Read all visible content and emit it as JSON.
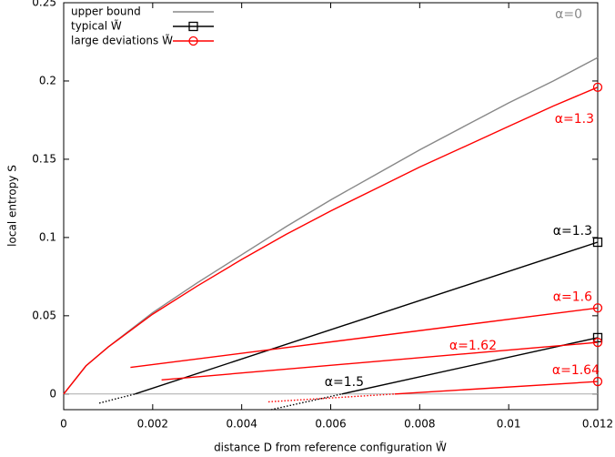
{
  "chart_data": {
    "type": "line",
    "xlabel": "distance D from reference configuration W̃",
    "ylabel": "local entropy S",
    "xlim": [
      0,
      0.012
    ],
    "xticks": [
      0,
      0.002,
      0.004,
      0.006,
      0.008,
      0.01,
      0.012
    ],
    "ylim": [
      -0.01,
      0.25
    ],
    "yticks": [
      0,
      0.05,
      0.1,
      0.15,
      0.2,
      0.25
    ],
    "legend_position": "upper left",
    "series": [
      {
        "name": "upper bound",
        "color": "#888888",
        "marker": "none",
        "curves": [
          {
            "label": "α=0",
            "linestyle": "solid",
            "x": [
              0,
              0.0005,
              0.001,
              0.002,
              0.003,
              0.004,
              0.005,
              0.006,
              0.007,
              0.008,
              0.009,
              0.01,
              0.011,
              0.012
            ],
            "values": [
              0,
              0.018,
              0.03,
              0.052,
              0.071,
              0.089,
              0.107,
              0.124,
              0.14,
              0.156,
              0.171,
              0.186,
              0.2,
              0.215
            ]
          }
        ]
      },
      {
        "name": "typical W̃",
        "color": "#000000",
        "marker": "square",
        "curves": [
          {
            "linestyle": "dotted",
            "x": [
              0.0008,
              0.0016
            ],
            "values": [
              -0.0058,
              0
            ]
          },
          {
            "label": "α=1.3",
            "linestyle": "solid",
            "x": [
              0.0016,
              0.012
            ],
            "values": [
              0,
              0.097
            ]
          },
          {
            "linestyle": "dotted",
            "x": [
              0.00466,
              0.00625
            ],
            "values": [
              -0.01,
              0
            ]
          },
          {
            "label": "α=1.5",
            "linestyle": "solid",
            "x": [
              0.00625,
              0.012
            ],
            "values": [
              0,
              0.036
            ]
          }
        ]
      },
      {
        "name": "large deviations W̃",
        "color": "#ff0000",
        "marker": "circle",
        "curves": [
          {
            "label": "α=1.3",
            "linestyle": "solid",
            "x": [
              0,
              0.0005,
              0.001,
              0.002,
              0.003,
              0.004,
              0.005,
              0.006,
              0.007,
              0.008,
              0.009,
              0.01,
              0.011,
              0.012
            ],
            "values": [
              0,
              0.018,
              0.03,
              0.051,
              0.069,
              0.086,
              0.102,
              0.117,
              0.131,
              0.145,
              0.158,
              0.171,
              0.184,
              0.196
            ]
          },
          {
            "label": "α=1.6",
            "linestyle": "solid",
            "x": [
              0.0015,
              0.012
            ],
            "values": [
              0.017,
              0.055
            ]
          },
          {
            "label": "α=1.62",
            "linestyle": "solid",
            "x": [
              0.0022,
              0.012
            ],
            "values": [
              0.009,
              0.033
            ]
          },
          {
            "linestyle": "dotted",
            "x": [
              0.0046,
              0.00744
            ],
            "values": [
              -0.005,
              0
            ]
          },
          {
            "label": "α=1.64",
            "linestyle": "solid",
            "x": [
              0.00744,
              0.012
            ],
            "values": [
              0,
              0.008
            ]
          }
        ]
      }
    ]
  }
}
